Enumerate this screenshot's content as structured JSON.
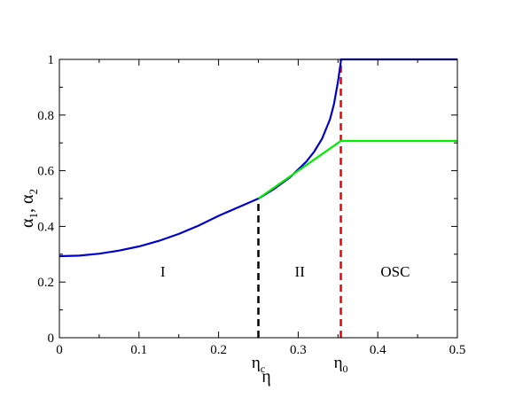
{
  "chart_data": {
    "type": "line",
    "xlabel": "η",
    "ylabel_main": "α",
    "ylabel_sub1": "1",
    "ylabel_sep": ", ",
    "ylabel_sub2": "2",
    "xlim": [
      0,
      0.5
    ],
    "ylim": [
      0,
      1
    ],
    "xticks": [
      0,
      0.1,
      0.2,
      0.3,
      0.4,
      0.5
    ],
    "xtick_labels": [
      "0",
      "0.1",
      "0.2",
      "0.3",
      "0.4",
      "0.5"
    ],
    "yticks": [
      0,
      0.2,
      0.4,
      0.6,
      0.8,
      1
    ],
    "ytick_labels": [
      "0",
      "0.2",
      "0.4",
      "0.6",
      "0.8",
      "1"
    ],
    "grid": false,
    "series": [
      {
        "color": "#0000cc",
        "x": [
          0,
          0.025,
          0.05,
          0.075,
          0.1,
          0.125,
          0.15,
          0.175,
          0.2,
          0.225,
          0.25,
          0.27,
          0.29,
          0.31,
          0.32,
          0.33,
          0.34,
          0.345,
          0.35,
          0.3535,
          0.3536,
          0.5
        ],
        "y": [
          0.293,
          0.295,
          0.302,
          0.313,
          0.328,
          0.348,
          0.373,
          0.403,
          0.438,
          0.469,
          0.5,
          0.535,
          0.577,
          0.632,
          0.668,
          0.715,
          0.785,
          0.84,
          0.92,
          0.99,
          1.0,
          1.0
        ]
      },
      {
        "color": "#00ee00",
        "x": [
          0.25,
          0.3536,
          0.5
        ],
        "y": [
          0.5,
          0.707,
          0.707
        ]
      }
    ],
    "vlines": [
      {
        "x": 0.25,
        "y_top": 0.5,
        "color": "#000000",
        "label_main": "η",
        "label_sub": "c"
      },
      {
        "x": 0.3536,
        "y_top": 1.0,
        "color": "#ee0000",
        "label_main": "η",
        "label_sub": "0"
      }
    ],
    "regions": [
      {
        "label": "I",
        "x": 0.13,
        "y": 0.22
      },
      {
        "label": "II",
        "x": 0.302,
        "y": 0.22
      },
      {
        "label": "OSC",
        "x": 0.422,
        "y": 0.22
      }
    ]
  }
}
